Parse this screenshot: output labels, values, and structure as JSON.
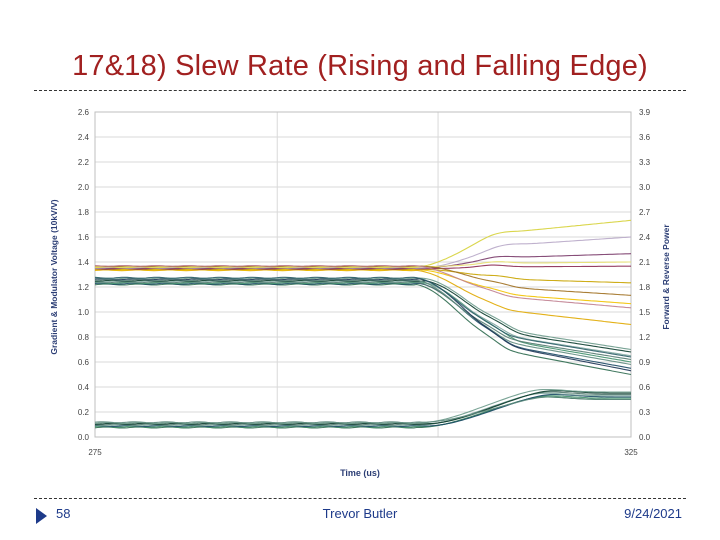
{
  "slide": {
    "title": "17&18) Slew Rate (Rising and Falling Edge)",
    "number": "58",
    "author": "Trevor Butler",
    "date": "9/24/2021"
  },
  "chart_data": {
    "type": "line",
    "title": "",
    "xlabel": "Time (us)",
    "ylabel": "Gradient & Modulator Voltage (10kV/V)",
    "y2label": "Forward & Reverse Power",
    "xlim": [
      275,
      325
    ],
    "ylim": [
      0,
      2.6
    ],
    "y2lim": [
      0,
      3.9
    ],
    "x_ticks": [
      "275",
      "325"
    ],
    "y_ticks": [
      "0.0",
      "0.2",
      "0.4",
      "0.6",
      "0.8",
      "1.0",
      "1.2",
      "1.4",
      "1.6",
      "1.8",
      "2.0",
      "2.2",
      "2.4",
      "2.6"
    ],
    "y2_ticks": [
      "0.0",
      "0.3",
      "0.6",
      "0.9",
      "1.2",
      "1.5",
      "1.8",
      "2.1",
      "2.4",
      "2.7",
      "3.0",
      "3.3",
      "3.6",
      "3.9"
    ],
    "grid": true,
    "vertical_gridlines_x": [
      275,
      292,
      307,
      325
    ],
    "groups": [
      {
        "name": "Forward & Reverse Power traces",
        "axis": "right",
        "colors": [
          "#e0a800",
          "#f2c200",
          "#c9a400",
          "#8b2a52",
          "#7a3b6a",
          "#b8a8c8",
          "#d6d23a",
          "#e8e070",
          "#a07020",
          "#c08090"
        ],
        "start_level": 2.03,
        "transition_start": 305,
        "end_values": [
          1.35,
          1.6,
          1.85,
          2.05,
          2.2,
          2.4,
          2.6,
          2.1,
          1.7,
          1.55
        ]
      },
      {
        "name": "Gradient Voltage traces",
        "axis": "left",
        "colors": [
          "#2d6a4f",
          "#1b4965",
          "#40916c",
          "#52796f",
          "#7fa7a0",
          "#0b3d2e",
          "#5e8b7e",
          "#1d3557",
          "#6c9a8b",
          "#2a5d67"
        ],
        "start_level": 1.25,
        "transition_start": 305,
        "end_values": [
          0.5,
          0.55,
          0.6,
          0.62,
          0.65,
          0.68,
          0.58,
          0.53,
          0.7,
          0.64
        ]
      },
      {
        "name": "Modulator Voltage traces",
        "axis": "left",
        "colors": [
          "#2d6a4f",
          "#40916c",
          "#1b4965",
          "#7fa7a0",
          "#52796f",
          "#0b3d2e",
          "#6c9a8b",
          "#5e8b7e"
        ],
        "start_level": 0.1,
        "transition_start": 305,
        "end_values": [
          0.3,
          0.31,
          0.32,
          0.33,
          0.34,
          0.35,
          0.36,
          0.3
        ]
      }
    ]
  }
}
